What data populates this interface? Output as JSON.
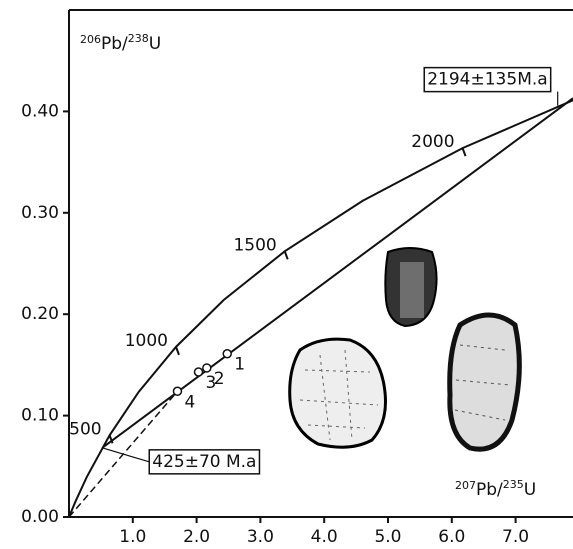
{
  "chart_data": {
    "type": "concordia",
    "y_label": [
      "206",
      "Pb/",
      "238",
      "U"
    ],
    "x_label": [
      "207",
      "Pb/",
      "235",
      "U"
    ],
    "xlim": [
      0,
      7.9
    ],
    "ylim": [
      0,
      0.5
    ],
    "xticks": [
      {
        "value": 1,
        "label": "1.0"
      },
      {
        "value": 2,
        "label": "2.0"
      },
      {
        "value": 3,
        "label": "3.0"
      },
      {
        "value": 4,
        "label": "4.0"
      },
      {
        "value": 5,
        "label": "5.0"
      },
      {
        "value": 6,
        "label": "6.0"
      },
      {
        "value": 7,
        "label": "7.0"
      }
    ],
    "yticks": [
      {
        "value": 0,
        "label": "0.00"
      },
      {
        "value": 0.1,
        "label": "0.10"
      },
      {
        "value": 0.2,
        "label": "0.20"
      },
      {
        "value": 0.3,
        "label": "0.30"
      },
      {
        "value": 0.4,
        "label": "0.40"
      }
    ],
    "series": [
      {
        "kind": "curve",
        "color": "#111",
        "x": [
          0,
          0.1036,
          0.2792,
          0.6362,
          1.093,
          1.6774,
          2.4248,
          3.3811,
          4.6045,
          6.1689,
          7.903
        ],
        "y": [
          0,
          0.0156,
          0.03954,
          0.0806,
          0.1234,
          0.1678,
          0.214,
          0.262,
          0.3119,
          0.3638,
          0.4111
        ]
      },
      {
        "kind": "line",
        "color": "#111",
        "x": [
          0.5212,
          7.9
        ],
        "y": [
          0.0682,
          0.413
        ]
      },
      {
        "kind": "dashed",
        "color": "#111",
        "x": [
          0,
          1.7
        ],
        "y": [
          0,
          0.124
        ]
      },
      {
        "kind": "points",
        "color": "#111",
        "labels": [
          "1",
          "2",
          "3",
          "4"
        ],
        "x": [
          2.48,
          2.16,
          2.03,
          1.7
        ],
        "y": [
          0.161,
          0.147,
          0.143,
          0.124
        ]
      }
    ],
    "age_marks": [
      {
        "label": 500,
        "x": 0.6362,
        "y": 0.0806
      },
      {
        "label": 1000,
        "x": 1.6774,
        "y": 0.1678
      },
      {
        "label": 1500,
        "x": 3.3811,
        "y": 0.262
      },
      {
        "label": 2000,
        "x": 6.1689,
        "y": 0.3638
      }
    ],
    "annotations": [
      {
        "text": "2194±135M.a",
        "x": 7.66,
        "y": 0.4057
      },
      {
        "text": "425±70 M.a",
        "x": 0.5212,
        "y": 0.0682
      }
    ]
  }
}
